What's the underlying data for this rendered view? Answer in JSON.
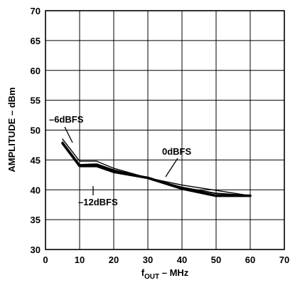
{
  "chart_data": {
    "type": "line",
    "xlabel_main": "f",
    "xlabel_sub": "OUT",
    "xlabel_rest": " – MHz",
    "ylabel": "AMPLITUDE – dBm",
    "xlim": [
      0,
      70
    ],
    "ylim": [
      30,
      70
    ],
    "xticks": [
      "0",
      "10",
      "20",
      "30",
      "40",
      "50",
      "60",
      "70"
    ],
    "yticks": [
      "30",
      "35",
      "40",
      "45",
      "50",
      "55",
      "60",
      "65",
      "70"
    ],
    "grid": true,
    "series": [
      {
        "name": "–6dBFS",
        "x": [
          5,
          10,
          15,
          20,
          30,
          40,
          50,
          60
        ],
        "y": [
          48.5,
          44.8,
          44.8,
          43.6,
          42.0,
          40.8,
          39.9,
          39.0
        ]
      },
      {
        "name": "–12dBFS",
        "x": [
          5,
          10,
          15,
          20,
          30,
          40,
          50,
          60
        ],
        "y": [
          47.8,
          44.0,
          44.0,
          43.0,
          42.0,
          40.2,
          39.0,
          39.0
        ]
      },
      {
        "name": "0dBFS",
        "x": [
          5,
          10,
          15,
          20,
          30,
          40,
          50,
          60
        ],
        "y": [
          48.0,
          44.2,
          44.3,
          43.3,
          42.0,
          40.4,
          39.4,
          39.0
        ]
      }
    ]
  }
}
